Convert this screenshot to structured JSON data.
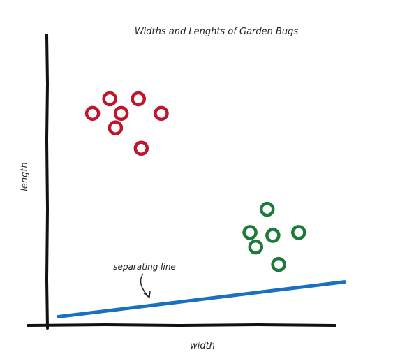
{
  "chart_data": {
    "type": "scatter",
    "title": "Widths and Lenghts of Garden Bugs",
    "xlabel": "width",
    "ylabel": "length",
    "xlim": [
      0,
      10
    ],
    "ylim": [
      0,
      10
    ],
    "grid": false,
    "legend": "none",
    "series": [
      {
        "color": "#c0162c",
        "points": [
          {
            "x": 1.6,
            "y": 7.3
          },
          {
            "x": 2.2,
            "y": 7.8
          },
          {
            "x": 2.6,
            "y": 7.3
          },
          {
            "x": 3.2,
            "y": 7.8
          },
          {
            "x": 2.4,
            "y": 6.8
          },
          {
            "x": 4.0,
            "y": 7.3
          },
          {
            "x": 3.3,
            "y": 6.1
          }
        ]
      },
      {
        "color": "#1e7a3a",
        "points": [
          {
            "x": 7.7,
            "y": 4.0
          },
          {
            "x": 7.1,
            "y": 3.2
          },
          {
            "x": 7.9,
            "y": 3.1
          },
          {
            "x": 8.8,
            "y": 3.2
          },
          {
            "x": 7.3,
            "y": 2.7
          },
          {
            "x": 8.1,
            "y": 2.1
          }
        ]
      }
    ],
    "lines": [
      {
        "color": "#1a70c0",
        "x": [
          0.4,
          10.4
        ],
        "y": [
          0.3,
          1.5
        ]
      }
    ],
    "annotations": [
      {
        "text": "separating line",
        "x": 3.4,
        "y": 2.1
      }
    ]
  }
}
